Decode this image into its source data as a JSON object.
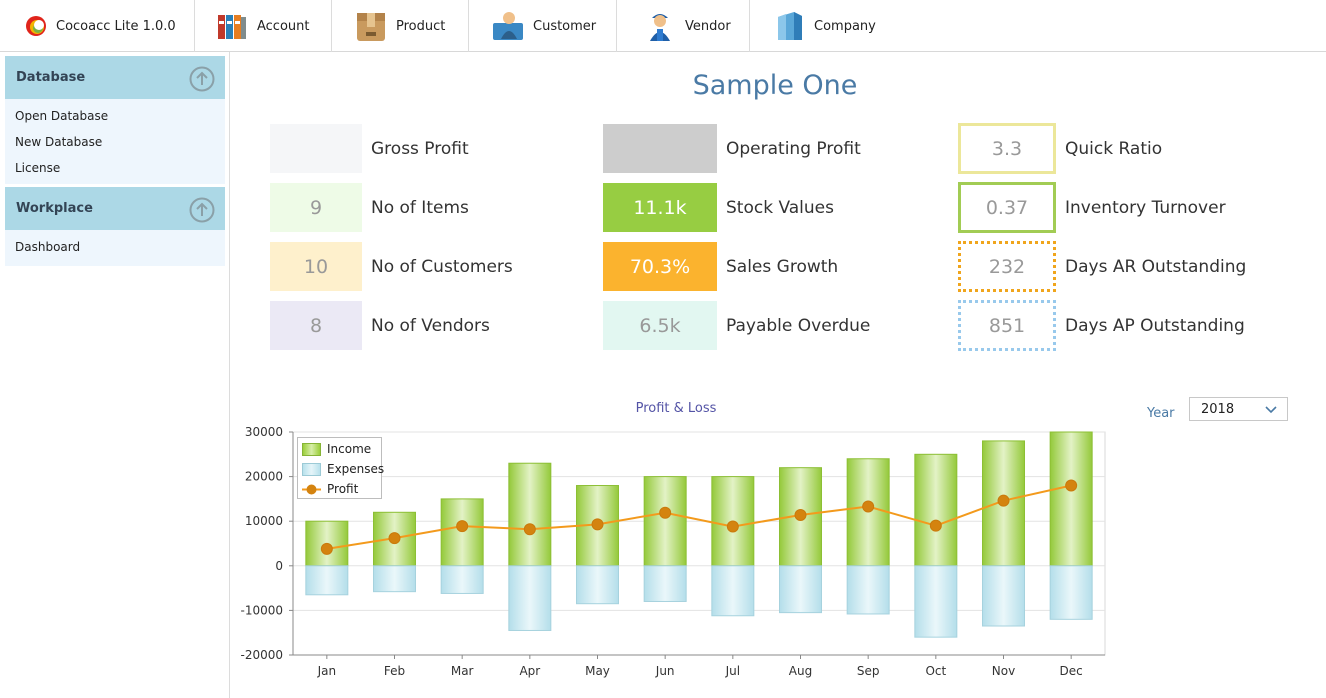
{
  "app": {
    "title": "Cocoacc Lite 1.0.0"
  },
  "menu": [
    {
      "label": "Account",
      "icon": "account-binders-icon"
    },
    {
      "label": "Product",
      "icon": "product-box-icon"
    },
    {
      "label": "Customer",
      "icon": "customer-person-icon"
    },
    {
      "label": "Vendor",
      "icon": "vendor-person-icon"
    },
    {
      "label": "Company",
      "icon": "company-building-icon"
    }
  ],
  "sidebar": {
    "groups": [
      {
        "title": "Database",
        "items": [
          "Open Database",
          "New Database",
          "License"
        ]
      },
      {
        "title": "Workplace",
        "items": [
          "Dashboard"
        ]
      }
    ]
  },
  "page": {
    "title": "Sample One"
  },
  "kpis": {
    "col1": [
      {
        "value": "",
        "label": "Gross Profit",
        "bg": "#f5f6f8",
        "color": "#999999"
      },
      {
        "value": "9",
        "label": "No of Items",
        "bg": "#eefbe7",
        "color": "#999999"
      },
      {
        "value": "10",
        "label": "No of Customers",
        "bg": "#fef0cc",
        "color": "#999999"
      },
      {
        "value": "8",
        "label": "No of Vendors",
        "bg": "#ebe9f5",
        "color": "#999999"
      }
    ],
    "col2": [
      {
        "value": "",
        "label": "Operating Profit",
        "bg": "#cdcdcd",
        "color": "#ffffff"
      },
      {
        "value": "11.1k",
        "label": "Stock Values",
        "bg": "#97cd42",
        "color": "#ffffff"
      },
      {
        "value": "70.3%",
        "label": "Sales Growth",
        "bg": "#fbb32e",
        "color": "#ffffff"
      },
      {
        "value": "6.5k",
        "label": "Payable Overdue",
        "bg": "#e2f7f1",
        "color": "#999999"
      }
    ],
    "col3": [
      {
        "value": "3.3",
        "label": "Quick Ratio",
        "border": "#ece79a",
        "style": "solid"
      },
      {
        "value": "0.37",
        "label": "Inventory Turnover",
        "border": "#a2cc54",
        "style": "solid"
      },
      {
        "value": "232",
        "label": "Days AR Outstanding",
        "border": "#f0a51c",
        "style": "dotted"
      },
      {
        "value": "851",
        "label": "Days AP Outstanding",
        "border": "#98c9ec",
        "style": "dotted"
      }
    ]
  },
  "chart_controls": {
    "year_label": "Year",
    "year_value": "2018"
  },
  "chart_data": {
    "type": "bar",
    "title": "Profit & Loss",
    "categories": [
      "Jan",
      "Feb",
      "Mar",
      "Apr",
      "May",
      "Jun",
      "Jul",
      "Aug",
      "Sep",
      "Oct",
      "Nov",
      "Dec"
    ],
    "series": [
      {
        "name": "Income",
        "type": "bar",
        "color": "#9bce3b",
        "values": [
          10000,
          12000,
          15000,
          23000,
          18000,
          20000,
          20000,
          22000,
          24000,
          25000,
          28000,
          30000
        ]
      },
      {
        "name": "Expenses",
        "type": "bar",
        "color": "#b8e1ec",
        "values": [
          -6500,
          -5800,
          -6200,
          -14500,
          -8500,
          -8000,
          -11200,
          -10500,
          -10800,
          -16000,
          -13500,
          -12000
        ]
      },
      {
        "name": "Profit",
        "type": "line",
        "color": "#f39a1c",
        "values": [
          3800,
          6200,
          8900,
          8200,
          9300,
          11900,
          8800,
          11400,
          13300,
          9000,
          14600,
          18000
        ]
      }
    ],
    "ylim": [
      -20000,
      30000
    ],
    "yticks": [
      -20000,
      -10000,
      0,
      10000,
      20000,
      30000
    ],
    "grid": true,
    "legend_position": "top-left"
  }
}
